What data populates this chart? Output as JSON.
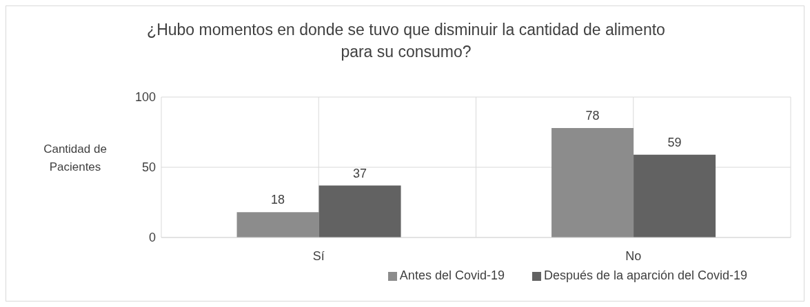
{
  "chart_data": {
    "type": "bar",
    "title": "¿Hubo momentos en donde se tuvo que disminuir la cantidad de alimento para su consumo?",
    "ylabel": "Cantidad de Pacientes",
    "categories": [
      "Sí",
      "No"
    ],
    "series": [
      {
        "name": "Antes del Covid-19",
        "color": "#8c8c8c",
        "values": [
          18,
          78
        ]
      },
      {
        "name": "Después de la aparción del Covid-19",
        "color": "#626262",
        "values": [
          37,
          59
        ]
      }
    ],
    "ylim": [
      0,
      100
    ],
    "yticks": [
      0,
      50,
      100
    ],
    "grid": true,
    "legend": "bottom",
    "data_labels": true
  }
}
